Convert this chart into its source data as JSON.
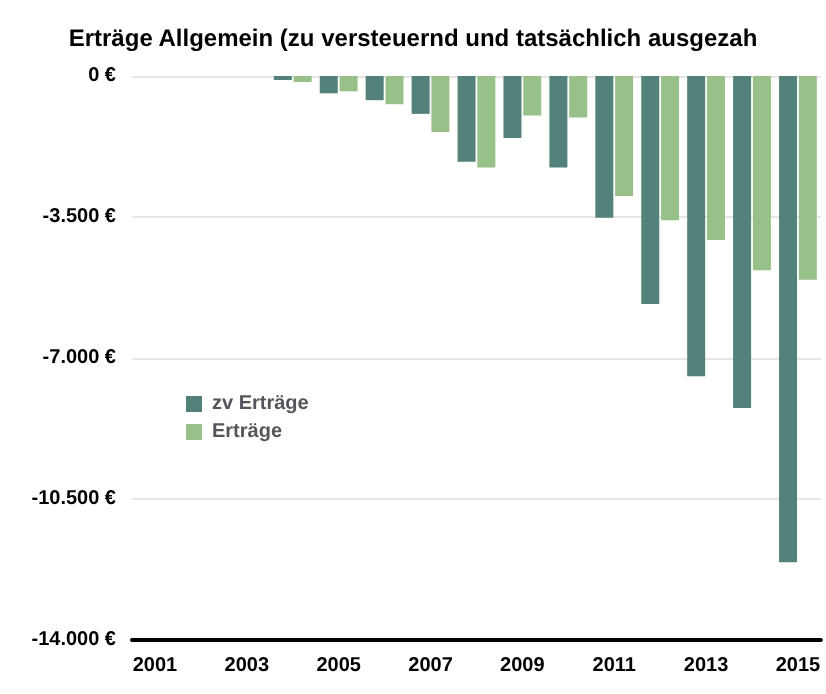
{
  "chart_data": {
    "type": "bar",
    "title": "Erträge Allgemein (zu versteuernd und tatsächlich ausgezah",
    "categories": [
      "2001",
      null,
      "2003",
      null,
      "2005",
      null,
      "2007",
      null,
      "2009",
      null,
      "2011",
      null,
      "2013",
      null,
      "2015"
    ],
    "series": [
      {
        "name": "zv Erträge",
        "color": "#52827a",
        "values": [
          null,
          null,
          null,
          -100,
          -430,
          -600,
          -940,
          -2130,
          -1540,
          -2270,
          -3520,
          -5660,
          -7450,
          -8240,
          -12070
        ]
      },
      {
        "name": "Erträge",
        "color": "#98c18a",
        "values": [
          null,
          null,
          null,
          -150,
          -380,
          -700,
          -1390,
          -2270,
          -980,
          -1030,
          -2980,
          -3580,
          -4070,
          -4820,
          -5060
        ]
      }
    ],
    "ylim": [
      -14000,
      0
    ],
    "yticks": [
      {
        "value": -14000,
        "label": "-14.000 €"
      },
      {
        "value": -10500,
        "label": "-10.500 €"
      },
      {
        "value": -7000,
        "label": "-7.000 €"
      },
      {
        "value": -3500,
        "label": "-3.500 €"
      },
      {
        "value": 0,
        "label": "0 €"
      }
    ],
    "grid": "y",
    "legend": "left"
  }
}
